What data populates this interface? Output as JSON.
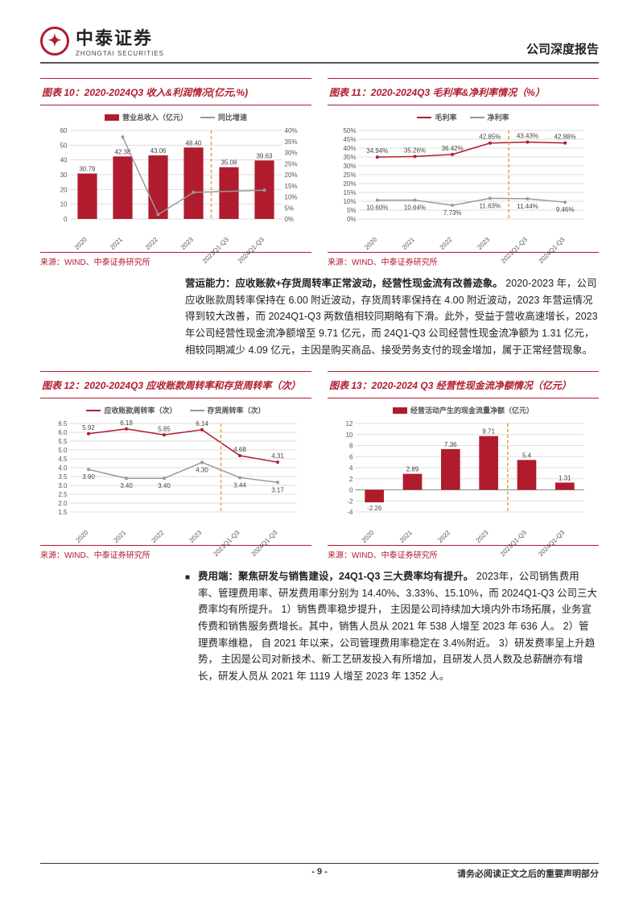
{
  "header": {
    "logo_cn": "中泰证券",
    "logo_en": "ZHONGTAI SECURITIES",
    "doc_type": "公司深度报告"
  },
  "chart10": {
    "title": "图表 10：2020-2024Q3 收入&利润情况(亿元,%)",
    "legend": [
      "营业总收入（亿元）",
      "同比增速"
    ],
    "categories": [
      "2020",
      "2021",
      "2022",
      "2023",
      "2023Q1-Q3",
      "2024Q1-Q3"
    ],
    "bar_values": [
      30.79,
      42.38,
      43.06,
      48.4,
      35.08,
      39.63
    ],
    "line_values_pct": [
      null,
      37,
      2,
      12,
      null,
      13
    ],
    "y_left_max": 60,
    "y_left_step": 10,
    "y_right_max": 40,
    "y_right_step": 5,
    "bar_color": "#b01c2e",
    "line_color": "#999999",
    "grid_color": "#dddddd",
    "source": "来源：WIND、中泰证券研究所"
  },
  "chart11": {
    "title": "图表 11：2020-2024Q3 毛利率&净利率情况（%）",
    "legend": [
      "毛利率",
      "净利率"
    ],
    "categories": [
      "2020",
      "2021",
      "2022",
      "2023",
      "2023Q1-Q3",
      "2024Q1-Q3"
    ],
    "series1": [
      34.94,
      35.26,
      36.42,
      42.85,
      43.43,
      42.88
    ],
    "series2": [
      10.6,
      10.64,
      7.73,
      11.63,
      11.44,
      9.46
    ],
    "y_max": 50,
    "y_step": 5,
    "color1": "#b01c2e",
    "color2": "#999999",
    "grid_color": "#dddddd",
    "source": "来源：WIND、中泰证券研究所"
  },
  "para1": {
    "lead": "营运能力：应收账款+存货周转率正常波动，经营性现金流有改善迹象。",
    "body": "2020-2023 年，公司应收账款周转率保持在 6.00 附近波动，存货周转率保持在 4.00 附近波动，2023 年营运情况得到较大改善，而 2024Q1-Q3 两数值相较同期略有下滑。此外，受益于营收高速增长，2023 年公司经营性现金流净额增至 9.71 亿元，而 24Q1-Q3 公司经营性现金流净额为 1.31 亿元，相较同期减少 4.09 亿元，主因是购买商品、接受劳务支付的现金增加，属于正常经营现象。"
  },
  "chart12": {
    "title": "图表 12：2020-2024Q3 应收账款周转率和存货周转率（次）",
    "legend": [
      "应收账款周转率（次）",
      "存货周转率（次）"
    ],
    "categories": [
      "2020",
      "2021",
      "2022",
      "2023",
      "2023Q1-Q3",
      "2024Q1-Q3"
    ],
    "series1": [
      5.92,
      6.19,
      5.85,
      6.14,
      4.68,
      4.31
    ],
    "series2": [
      3.9,
      3.4,
      3.4,
      4.3,
      3.44,
      3.17
    ],
    "y_min": 1.5,
    "y_max": 6.5,
    "y_step": 0.5,
    "color1": "#b01c2e",
    "color2": "#999999",
    "grid_color": "#dddddd",
    "source": "来源：WIND、中泰证券研究所"
  },
  "chart13": {
    "title": "图表 13：2020-2024 Q3 经营性现金流净额情况（亿元）",
    "legend": [
      "经营活动产生的现金流量净额（亿元）"
    ],
    "categories": [
      "2020",
      "2021",
      "2022",
      "2023",
      "2023Q1-Q3",
      "2024Q1-Q3"
    ],
    "values": [
      -2.26,
      2.89,
      7.36,
      9.71,
      5.4,
      1.31
    ],
    "y_min": -4,
    "y_max": 12,
    "y_step": 2,
    "bar_color": "#b01c2e",
    "grid_color": "#dddddd",
    "source": "来源：WIND、中泰证券研究所"
  },
  "para2": {
    "lead": "费用端：聚焦研发与销售建设，24Q1-Q3 三大费率均有提升。",
    "body_a": "2023年，公司销售费用率、管理费用率、研发费用率分别为 14.40%、3.33%、15.10%，而 2024Q1-Q3 公司三大费率均有所提升。",
    "u1": "1）销售费率稳步提升，",
    "body_b": "主因是公司持续加大境内外市场拓展，业务宣传费和销售服务费增长。其中，销售人员从 2021 年 538 人增至 2023 年 636 人。",
    "u2": "2）管理费率维稳，",
    "body_c": "自 2021 年以来，公司管理费用率稳定在 3.4%附近。",
    "u3": "3）研发费率呈上升趋势，",
    "body_d": "主因是公司对新技术、新工艺研发投入有所增加，且研发人员人数及总薪酬亦有增长，研发人员从 2021 年 1119 人增至 2023 年 1352 人。"
  },
  "footer": {
    "page": "- 9 -",
    "note": "请务必阅读正文之后的重要声明部分"
  }
}
